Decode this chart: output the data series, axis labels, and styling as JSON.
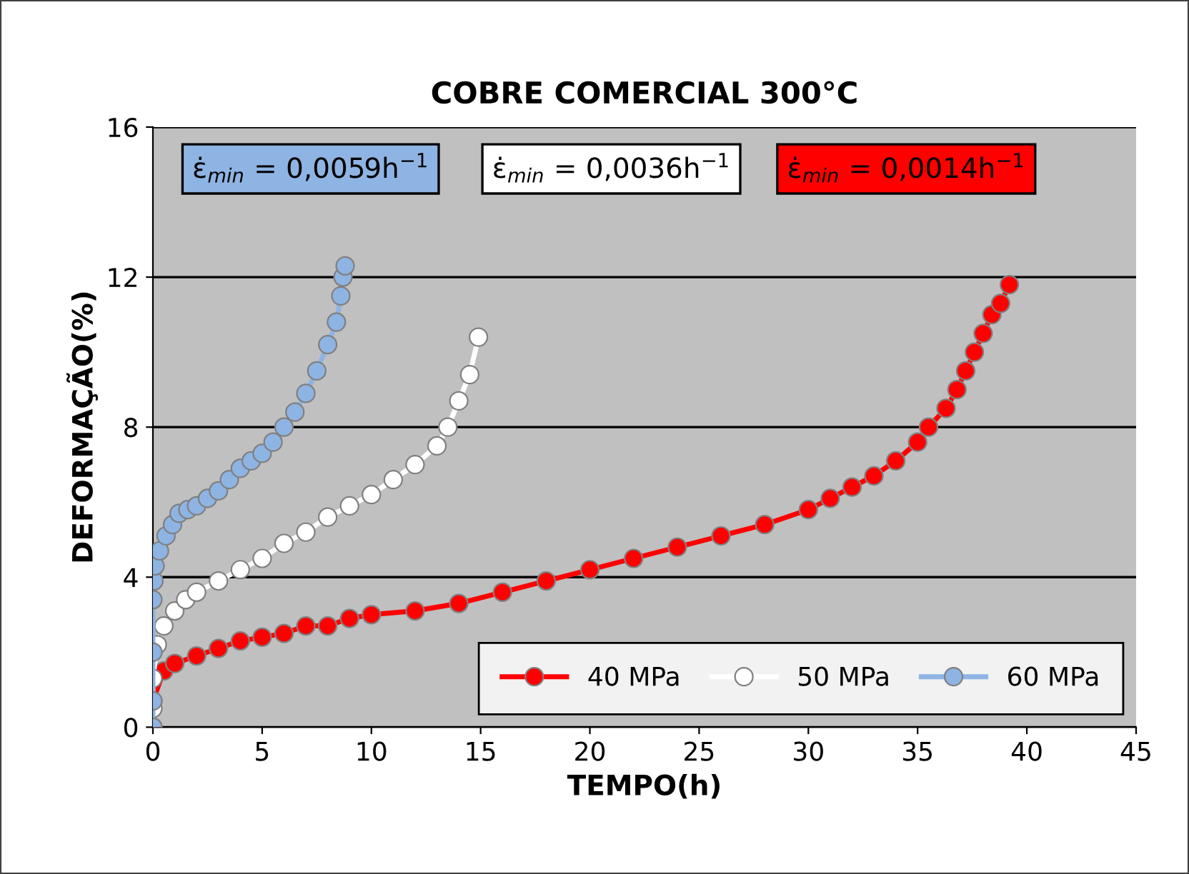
{
  "chart_data": {
    "type": "line",
    "title": "COBRE COMERCIAL 300°C",
    "xlabel": "TEMPO(h)",
    "ylabel": "DEFORMAÇÃO(%)",
    "xlim": [
      0,
      45
    ],
    "xticks": [
      0,
      5,
      10,
      15,
      20,
      25,
      30,
      35,
      40,
      45
    ],
    "ylim": [
      0,
      16
    ],
    "yticks": [
      0,
      4,
      8,
      12,
      16
    ],
    "grid": "y",
    "legend": "bottom right",
    "marker": "circle",
    "line_style": "solid",
    "annotations": [
      "ε̇$_{min}$ = 0,0059h$^{−1}$",
      "ε̇$_{min}$ = 0,0036h$^{−1}$",
      "ε̇$_{min}$ = 0,0014h$^{−1}$"
    ],
    "series": [
      {
        "name": "40 MPa",
        "color": "#ff0000",
        "x": [
          0,
          0,
          0.5,
          1,
          2,
          3,
          4,
          5,
          6,
          7,
          8,
          9,
          10,
          12,
          14,
          16,
          18,
          20,
          22,
          24,
          26,
          28,
          30,
          31,
          32,
          33,
          34,
          35,
          35.5,
          36.3,
          36.8,
          37.2,
          37.6,
          38,
          38.4,
          38.8,
          39.2
        ],
        "values": [
          0,
          0.7,
          1.5,
          1.7,
          1.9,
          2.1,
          2.3,
          2.4,
          2.5,
          2.7,
          2.7,
          2.9,
          3.0,
          3.1,
          3.3,
          3.6,
          3.9,
          4.2,
          4.5,
          4.8,
          5.1,
          5.4,
          5.8,
          6.1,
          6.4,
          6.7,
          7.1,
          7.6,
          8.0,
          8.5,
          9.0,
          9.5,
          10.0,
          10.5,
          11.0,
          11.3,
          11.8
        ]
      },
      {
        "name": "50 MPa",
        "color": "#ffffff",
        "x": [
          0,
          0,
          0.2,
          0.5,
          1,
          1.5,
          2,
          3,
          4,
          5,
          6,
          7,
          8,
          9,
          10,
          11,
          12,
          13,
          13.5,
          14,
          14.5,
          14.9
        ],
        "values": [
          0.5,
          1.3,
          2.2,
          2.7,
          3.1,
          3.4,
          3.6,
          3.9,
          4.2,
          4.5,
          4.9,
          5.2,
          5.6,
          5.9,
          6.2,
          6.6,
          7.0,
          7.5,
          8.0,
          8.7,
          9.4,
          10.4
        ]
      },
      {
        "name": "60 MPa",
        "color": "#8eb4e3",
        "x": [
          0,
          0,
          0,
          0,
          0.05,
          0.1,
          0.3,
          0.6,
          0.9,
          1.2,
          1.6,
          2,
          2.5,
          3,
          3.5,
          4,
          4.5,
          5,
          5.5,
          6,
          6.5,
          7,
          7.5,
          8,
          8.4,
          8.6,
          8.7,
          8.8
        ],
        "values": [
          0,
          0.7,
          2.0,
          3.4,
          3.9,
          4.3,
          4.7,
          5.1,
          5.4,
          5.7,
          5.8,
          5.9,
          6.1,
          6.3,
          6.6,
          6.9,
          7.1,
          7.3,
          7.6,
          8.0,
          8.4,
          8.9,
          9.5,
          10.2,
          10.8,
          11.5,
          12.0,
          12.3
        ]
      }
    ]
  }
}
